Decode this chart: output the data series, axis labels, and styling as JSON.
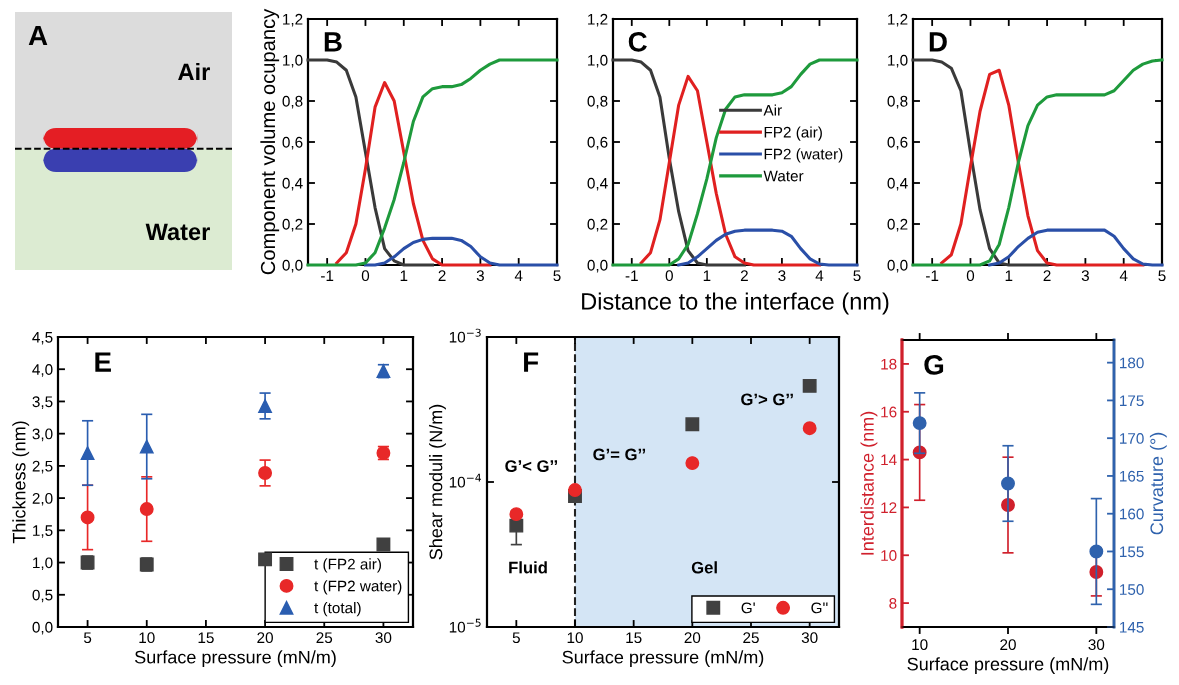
{
  "chart_data": [
    {
      "type": "other",
      "title": "A",
      "annotations": [
        "Air",
        "Water"
      ]
    },
    {
      "type": "line",
      "title": "B",
      "ylabel": "Component volume ocupancy",
      "x": [
        -1.5,
        -1.25,
        -1,
        -0.75,
        -0.5,
        -0.25,
        0,
        0.25,
        0.5,
        0.75,
        1,
        1.25,
        1.5,
        1.75,
        2,
        2.25,
        2.5,
        2.75,
        3,
        3.25,
        3.5,
        3.75,
        4,
        4.25,
        4.5,
        4.75,
        5
      ],
      "series": [
        {
          "color": "#3a3a3a",
          "values": [
            1,
            1,
            1,
            0.99,
            0.95,
            0.82,
            0.55,
            0.28,
            0.08,
            0.02,
            0,
            0,
            0,
            0,
            null,
            null,
            null,
            null,
            null,
            null,
            null,
            null,
            null,
            null,
            null,
            null,
            null
          ]
        },
        {
          "color": "#e02020",
          "values": [
            null,
            null,
            null,
            0.01,
            0.06,
            0.2,
            0.47,
            0.77,
            0.89,
            0.8,
            0.55,
            0.3,
            0.12,
            0.03,
            0,
            0,
            0,
            0,
            0,
            0,
            null,
            null,
            null,
            null,
            null,
            null,
            null
          ]
        },
        {
          "color": "#2a4fa8",
          "values": [
            null,
            null,
            null,
            null,
            null,
            null,
            0,
            0,
            0.01,
            0.04,
            0.08,
            0.11,
            0.125,
            0.13,
            0.13,
            0.13,
            0.12,
            0.09,
            0.04,
            0.01,
            0,
            0,
            0,
            0,
            0,
            0,
            0
          ]
        },
        {
          "color": "#1e9a3c",
          "values": [
            0,
            0,
            0,
            0,
            0,
            0,
            0.01,
            0.06,
            0.18,
            0.32,
            0.5,
            0.7,
            0.82,
            0.86,
            0.87,
            0.87,
            0.88,
            0.91,
            0.95,
            0.98,
            1,
            1,
            1,
            1,
            1,
            1,
            1
          ]
        }
      ],
      "xlim": [
        -1.5,
        5
      ],
      "xticks": [
        -1,
        0,
        1,
        2,
        3,
        4,
        5
      ],
      "ylim": [
        0,
        1.2
      ],
      "yticks": [
        {
          "value": 0,
          "label": "0,0"
        },
        {
          "value": 0.2,
          "label": "0,2"
        },
        {
          "value": 0.4,
          "label": "0,4"
        },
        {
          "value": 0.6,
          "label": "0,6"
        },
        {
          "value": 0.8,
          "label": "0,8"
        },
        {
          "value": 1.0,
          "label": "1,0"
        },
        {
          "value": 1.2,
          "label": "1,2"
        }
      ]
    },
    {
      "type": "line",
      "title": "C",
      "xlabel": "Distance to the interface (nm)",
      "legend": "right",
      "x": [
        -1.5,
        -1.25,
        -1,
        -0.75,
        -0.5,
        -0.25,
        0,
        0.25,
        0.5,
        0.75,
        1,
        1.25,
        1.5,
        1.75,
        2,
        2.25,
        2.5,
        2.75,
        3,
        3.25,
        3.5,
        3.75,
        4,
        4.25,
        4.5,
        4.75,
        5
      ],
      "series": [
        {
          "name": "Air",
          "color": "#3a3a3a",
          "values": [
            1,
            1,
            1,
            0.99,
            0.95,
            0.82,
            0.52,
            0.26,
            0.07,
            0.01,
            0,
            0,
            0,
            0,
            0,
            null,
            null,
            null,
            null,
            null,
            null,
            null,
            null,
            null,
            null,
            null,
            null
          ]
        },
        {
          "name": "FP2 (air)",
          "color": "#e02020",
          "values": [
            null,
            null,
            null,
            0.01,
            0.06,
            0.22,
            0.5,
            0.78,
            0.92,
            0.85,
            0.6,
            0.35,
            0.15,
            0.04,
            0.01,
            0,
            0,
            0,
            0,
            0,
            0,
            0,
            0,
            null,
            null,
            null,
            null
          ]
        },
        {
          "name": "FP2 (water)",
          "color": "#2a4fa8",
          "values": [
            null,
            null,
            null,
            null,
            null,
            null,
            null,
            0,
            0.01,
            0.04,
            0.08,
            0.12,
            0.15,
            0.165,
            0.17,
            0.17,
            0.17,
            0.17,
            0.165,
            0.14,
            0.08,
            0.03,
            0.005,
            0,
            0,
            0,
            0
          ]
        },
        {
          "name": "Water",
          "color": "#1e9a3c",
          "values": [
            0,
            0,
            0,
            0,
            0,
            0,
            0,
            0.03,
            0.1,
            0.25,
            0.42,
            0.62,
            0.76,
            0.82,
            0.83,
            0.83,
            0.83,
            0.83,
            0.84,
            0.87,
            0.93,
            0.98,
            1,
            1,
            1,
            1,
            1
          ]
        }
      ],
      "xlim": [
        -1.5,
        5
      ],
      "xticks": [
        {
          "value": -1,
          "label": "-1"
        },
        0,
        1,
        2,
        3,
        4,
        5
      ],
      "ylim": [
        0,
        1.2
      ],
      "yticks": [
        {
          "value": 0,
          "label": "0,0"
        },
        {
          "value": 0.2,
          "label": "0,2"
        },
        {
          "value": 0.4,
          "label": "0,4"
        },
        {
          "value": 0.6,
          "label": "0,6"
        },
        {
          "value": 0.8,
          "label": "0,8"
        },
        {
          "value": 1.0,
          "label": "1,0"
        },
        {
          "value": 1.2,
          "label": "1,2"
        }
      ]
    },
    {
      "type": "line",
      "title": "D",
      "x": [
        -1.5,
        -1.25,
        -1,
        -0.75,
        -0.5,
        -0.25,
        0,
        0.25,
        0.5,
        0.75,
        1,
        1.25,
        1.5,
        1.75,
        2,
        2.25,
        2.5,
        2.75,
        3,
        3.25,
        3.5,
        3.75,
        4,
        4.25,
        4.5,
        4.75,
        5
      ],
      "series": [
        {
          "color": "#3a3a3a",
          "values": [
            1,
            1,
            1,
            0.99,
            0.96,
            0.85,
            0.55,
            0.27,
            0.08,
            0.01,
            0,
            0,
            0,
            0,
            0,
            null,
            null,
            null,
            null,
            null,
            null,
            null,
            null,
            null,
            null,
            null,
            null
          ]
        },
        {
          "color": "#e02020",
          "values": [
            null,
            null,
            null,
            0.01,
            0.05,
            0.2,
            0.48,
            0.75,
            0.93,
            0.95,
            0.78,
            0.5,
            0.24,
            0.07,
            0.01,
            0,
            0,
            0,
            0,
            0,
            0,
            0,
            0,
            0,
            0,
            null,
            null
          ]
        },
        {
          "color": "#2a4fa8",
          "values": [
            null,
            null,
            null,
            null,
            null,
            null,
            null,
            null,
            0,
            0.01,
            0.04,
            0.09,
            0.13,
            0.16,
            0.17,
            0.17,
            0.17,
            0.17,
            0.17,
            0.17,
            0.17,
            0.14,
            0.08,
            0.03,
            0.005,
            0,
            0
          ]
        },
        {
          "color": "#1e9a3c",
          "values": [
            0,
            0,
            0,
            0,
            0,
            0,
            0,
            0,
            0.02,
            0.1,
            0.28,
            0.5,
            0.68,
            0.78,
            0.82,
            0.83,
            0.83,
            0.83,
            0.83,
            0.83,
            0.83,
            0.85,
            0.9,
            0.95,
            0.98,
            0.995,
            1
          ]
        }
      ],
      "xlim": [
        -1.5,
        5
      ],
      "xticks": [
        {
          "value": -1,
          "label": "-1"
        },
        0,
        1,
        2,
        3,
        4,
        5
      ],
      "ylim": [
        0,
        1.2
      ],
      "yticks": [
        {
          "value": 0,
          "label": "0,0"
        },
        {
          "value": 0.2,
          "label": "0,2"
        },
        {
          "value": 0.4,
          "label": "0,4"
        },
        {
          "value": 0.6,
          "label": "0,6"
        },
        {
          "value": 0.8,
          "label": "0,8"
        },
        {
          "value": 1.0,
          "label": "1,0"
        },
        {
          "value": 1.2,
          "label": "1,2"
        }
      ]
    },
    {
      "type": "scatter",
      "title": "E",
      "xlabel": "Surface pressure (mN/m)",
      "ylabel": "Thickness (nm)",
      "legend": "bottom right",
      "x": [
        5,
        10,
        20,
        30
      ],
      "series": [
        {
          "name": "t (FP2 air)",
          "color": "#404040",
          "marker": "square",
          "values": [
            1.0,
            0.97,
            1.05,
            1.28
          ],
          "errors": [
            0.1,
            0.1,
            0.05,
            null
          ]
        },
        {
          "name": "t (FP2 water)",
          "color": "#e82828",
          "marker": "circle",
          "values": [
            1.7,
            1.83,
            2.39,
            2.7
          ],
          "errors": [
            0.5,
            0.5,
            0.2,
            0.1
          ]
        },
        {
          "name": "t (total)",
          "color": "#2a5db0",
          "marker": "triangle",
          "values": [
            2.7,
            2.8,
            3.43,
            3.97
          ],
          "errors": [
            0.5,
            0.5,
            0.2,
            0.1
          ]
        }
      ],
      "xlim": [
        2.5,
        32.5
      ],
      "xticks": [
        5,
        10,
        15,
        20,
        25,
        30
      ],
      "ylim": [
        0,
        4.5
      ],
      "yticks": [
        {
          "value": 0,
          "label": "0,0"
        },
        {
          "value": 0.5,
          "label": "0,5"
        },
        {
          "value": 1.0,
          "label": "1,0"
        },
        {
          "value": 1.5,
          "label": "1,5"
        },
        {
          "value": 2.0,
          "label": "2,0"
        },
        {
          "value": 2.5,
          "label": "2,5"
        },
        {
          "value": 3.0,
          "label": "3,0"
        },
        {
          "value": 3.5,
          "label": "3,5"
        },
        {
          "value": 4.0,
          "label": "4,0"
        },
        {
          "value": 4.5,
          "label": "4,5"
        }
      ]
    },
    {
      "type": "scatter",
      "title": "F",
      "xlabel": "Surface pressure (mN/m)",
      "ylabel": "Shear moduli (N/m)",
      "legend": "bottom right",
      "log": true,
      "x": [
        5,
        10,
        20,
        30
      ],
      "series": [
        {
          "name": "G'",
          "color": "#404040",
          "marker": "square",
          "values": [
            5e-05,
            8e-05,
            0.00025,
            0.00046
          ],
          "errors": [
            1.3e-05,
            null,
            null,
            null
          ]
        },
        {
          "name": "G''",
          "color": "#e82828",
          "marker": "circle",
          "values": [
            6e-05,
            8.8e-05,
            0.000135,
            0.000235
          ]
        }
      ],
      "bands": [
        {
          "axis": "x",
          "from": 10,
          "to": 32.5,
          "color": "#d4e5f5"
        }
      ],
      "ref_lines": [
        {
          "axis": "x",
          "value": 10,
          "line_style": "dashed",
          "color": "#222222"
        }
      ],
      "annotations": [
        "G’< G’’",
        "G’= G’’",
        "G’> G’’",
        "Fluid",
        "Gel"
      ],
      "xlim": [
        2.5,
        32.5
      ],
      "xticks": [
        5,
        10,
        15,
        20,
        25,
        30
      ],
      "ylim": [
        1e-05,
        0.001
      ],
      "yticks": [
        {
          "value": 1e-05,
          "label": "10$^{−5}$"
        },
        {
          "value": 0.0001,
          "label": "10$^{−4}$"
        },
        {
          "value": 0.001,
          "label": "10$^{−3}$"
        }
      ]
    },
    {
      "type": "scatter",
      "title": "G",
      "xlabel": "Surface pressure (mN/m)",
      "ylabel": "Interdistance (nm)",
      "y2label": "Curvature (°)",
      "x": [
        10,
        20,
        30
      ],
      "series": [
        {
          "color": "#d0202c",
          "marker": "circle",
          "values": [
            14.3,
            12.1,
            9.3
          ],
          "errors": [
            2.0,
            2.0,
            1.0
          ]
        },
        {
          "color": "#2f62ad",
          "marker": "circle",
          "axis": "y2",
          "values": [
            172,
            164,
            155
          ],
          "errors": [
            4,
            5,
            7
          ]
        }
      ],
      "xlim": [
        8,
        32
      ],
      "xticks": [
        10,
        20,
        30
      ],
      "ylim": [
        7,
        19
      ],
      "yticks": [
        8,
        10,
        12,
        14,
        16,
        18
      ],
      "y2lim": [
        145,
        183
      ],
      "y2ticks": [
        145,
        150,
        155,
        160,
        165,
        170,
        175,
        180
      ]
    }
  ]
}
